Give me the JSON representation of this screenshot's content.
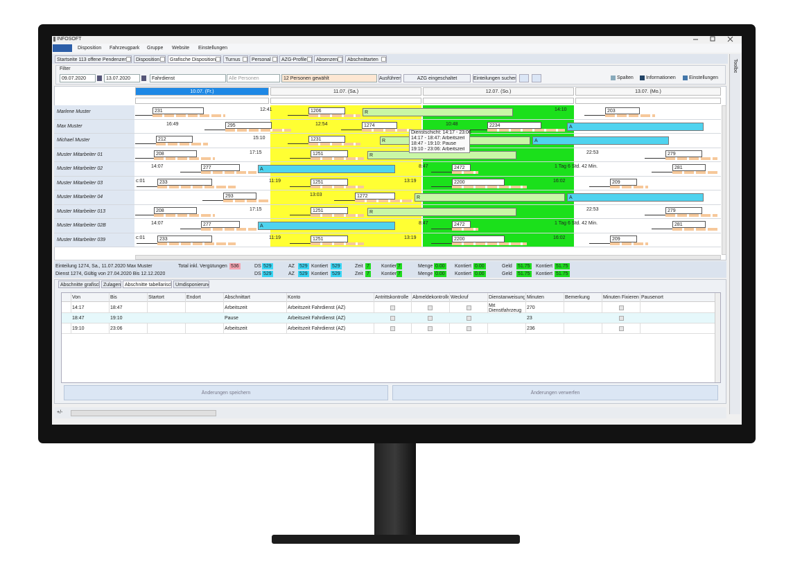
{
  "window": {
    "title": "INFOSOFT",
    "menu": [
      "Disposition",
      "Fahrzeugpark",
      "Gruppe",
      "Website",
      "Einstellungen"
    ],
    "tabs": [
      "Startseite 113 offene Pendenzen",
      "Disposition",
      "Grafische Disposition",
      "Turnus",
      "Personal",
      "AZG-Profile",
      "Absenzen",
      "Abschnittarten"
    ],
    "side_panel": "Toolbox"
  },
  "filter": {
    "label": "Filter",
    "date_from": "09.07.2020",
    "date_to": "13.07.2020",
    "group": "Fahrdienst",
    "persons_placeholder": "Alle Personen",
    "persons_selected": "12 Personen gewählt",
    "buttons": [
      "Ausführen",
      "AZG eingeschaltet",
      "Einteilungen suchen"
    ],
    "right_menus": [
      "Spalten",
      "Informationen",
      "Einstellungen"
    ]
  },
  "schedule": {
    "days": [
      "10.07. (Fr.)",
      "11.07. (Sa.)",
      "12.07. (So.)",
      "13.07. (Mo.)"
    ],
    "rows": [
      {
        "name": "Marlene Muster",
        "items": [
          "231",
          "12:41",
          "1206",
          "R",
          "14:10",
          "203"
        ]
      },
      {
        "name": "Max Muster",
        "items": [
          "16:49",
          "295",
          "12:54",
          "1274",
          "10:48",
          "2234",
          "A"
        ]
      },
      {
        "name": "Michael Muster",
        "items": [
          "212",
          "15:10",
          "1231",
          "R",
          "A"
        ]
      },
      {
        "name": "Muster Mitarbeiter 01",
        "items": [
          "208",
          "17:15",
          "1251",
          "R",
          "22:53",
          "279"
        ]
      },
      {
        "name": "Muster Mitarbeiter 02",
        "items": [
          "14:07",
          "277",
          "A",
          "8:47",
          "2472",
          "1 Tag 6 Std. 42 Min.",
          "281"
        ]
      },
      {
        "name": "Muster Mitarbeiter 03",
        "items": [
          "c:01",
          "233",
          "11:19",
          "1251",
          "13:19",
          "2200",
          "16:02",
          "209"
        ]
      },
      {
        "name": "Muster Mitarbeiter 04",
        "items": [
          "293",
          "13:03",
          "1272",
          "R",
          "A"
        ]
      },
      {
        "name": "Muster Mitarbeiter 013",
        "items": [
          "208",
          "17:15",
          "1251",
          "R",
          "22:53",
          "279"
        ]
      },
      {
        "name": "Muster Mitarbeiter 02B",
        "items": [
          "14:07",
          "277",
          "A",
          "8:47",
          "2472",
          "1 Tag 6 Std. 42 Min.",
          "281"
        ]
      },
      {
        "name": "Muster Mitarbeiter 039",
        "items": [
          "c:01",
          "233",
          "11:19",
          "1251",
          "13:19",
          "2200",
          "16:02",
          "209"
        ]
      }
    ],
    "tooltip": [
      "Dienstschicht: 14:17 - 23:06",
      "14:17 - 18:47: Arbeitszeit",
      "18:47 - 19:10: Pause",
      "19:10 - 23:06: Arbeitszeit"
    ]
  },
  "status": {
    "line1": [
      "Einteilung 1274, Sa., 11.07.2020 Max Muster",
      "Total inkl. Vergütungen",
      "536",
      "DS",
      "529",
      "AZ",
      "529",
      "Kontiert",
      "529",
      "Zeit",
      "7",
      "Kontiert",
      "7",
      "Menge",
      "0.00",
      "Kontiert",
      "0.00",
      "Geld",
      "51.75",
      "Kontiert",
      "51.75"
    ],
    "line2": [
      "Dienst 1274, Gültig von 27.04.2020 Bis 12.12.2020",
      "DS",
      "529",
      "AZ",
      "529",
      "Kontiert",
      "529",
      "Zeit",
      "7",
      "Kontiert",
      "7",
      "Menge",
      "0.00",
      "Kontiert",
      "0.00",
      "Geld",
      "51.75",
      "Kontiert",
      "51.75"
    ]
  },
  "details": {
    "tabs": [
      "Abschnitte grafisch",
      "Zulagen",
      "Abschnitte tabellarisch",
      "Umdisponierung"
    ],
    "columns": [
      "Von",
      "Bis",
      "Startort",
      "Endort",
      "Abschnittart",
      "Konto",
      "Antrittskontrolle",
      "Abmeldekontrolle",
      "Weckruf",
      "Dienstanweisung",
      "Minuten",
      "Bemerkung",
      "Minuten Fixieren",
      "Pausenort"
    ],
    "rows": [
      {
        "von": "14:17",
        "bis": "18:47",
        "abschnittart": "Arbeitszeit",
        "konto": "Arbeitszeit Fahrdienst (AZ)",
        "dienstanweisung": "Mit Dienstfahrzeug",
        "minuten": "270"
      },
      {
        "von": "18:47",
        "bis": "19:10",
        "abschnittart": "Pause",
        "konto": "Arbeitszeit Fahrdienst (AZ)",
        "minuten": "23"
      },
      {
        "von": "19:10",
        "bis": "23:06",
        "abschnittart": "Arbeitszeit",
        "konto": "Arbeitszeit Fahrdienst (AZ)",
        "minuten": "236"
      }
    ],
    "buttons": [
      "Änderungen speichern",
      "Änderungen verwerfen"
    ]
  },
  "footer": {
    "toggle": "+/-"
  }
}
